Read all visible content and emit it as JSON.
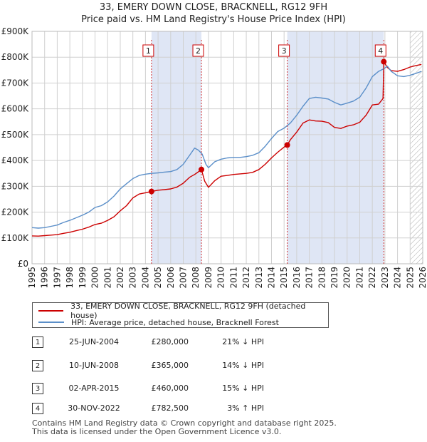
{
  "title_line1": "33, EMERY DOWN CLOSE, BRACKNELL, RG12 9FH",
  "title_line2": "Price paid vs. HM Land Registry's House Price Index (HPI)",
  "legend": {
    "property": "33, EMERY DOWN CLOSE, BRACKNELL, RG12 9FH (detached house)",
    "hpi": "HPI: Average price, detached house, Bracknell Forest"
  },
  "colors": {
    "property": "#cc0000",
    "hpi": "#5b8fc9",
    "shade": "#dfe6f5",
    "grid": "#d0d0d0",
    "hatch": "#999999"
  },
  "transactions": [
    {
      "num": "1",
      "date": "25-JUN-2004",
      "price": "£280,000",
      "hpi_rel": "21% ↓ HPI"
    },
    {
      "num": "2",
      "date": "10-JUN-2008",
      "price": "£365,000",
      "hpi_rel": "14% ↓ HPI"
    },
    {
      "num": "3",
      "date": "02-APR-2015",
      "price": "£460,000",
      "hpi_rel": "15% ↓ HPI"
    },
    {
      "num": "4",
      "date": "30-NOV-2022",
      "price": "£782,500",
      "hpi_rel": "3% ↑ HPI"
    }
  ],
  "footer_line1": "Contains HM Land Registry data © Crown copyright and database right 2025.",
  "footer_line2": "This data is licensed under the Open Government Licence v3.0.",
  "chart_data": {
    "type": "line",
    "title": "Price paid vs. HM Land Registry's House Price Index (HPI)",
    "xlim": [
      1995,
      2026
    ],
    "ylim": [
      0,
      900000
    ],
    "x_ticks": [
      1995,
      1996,
      1997,
      1998,
      1999,
      2000,
      2001,
      2002,
      2003,
      2004,
      2005,
      2006,
      2007,
      2008,
      2009,
      2010,
      2011,
      2012,
      2013,
      2014,
      2015,
      2016,
      2017,
      2018,
      2019,
      2020,
      2021,
      2022,
      2023,
      2024,
      2025,
      2026
    ],
    "y_ticks": [
      {
        "value": 0,
        "label": "£0"
      },
      {
        "value": 100000,
        "label": "£100K"
      },
      {
        "value": 200000,
        "label": "£200K"
      },
      {
        "value": 300000,
        "label": "£300K"
      },
      {
        "value": 400000,
        "label": "£400K"
      },
      {
        "value": 500000,
        "label": "£500K"
      },
      {
        "value": 600000,
        "label": "£600K"
      },
      {
        "value": 700000,
        "label": "£700K"
      },
      {
        "value": 800000,
        "label": "£800K"
      },
      {
        "value": 900000,
        "label": "£900K"
      }
    ],
    "shaded_ranges": [
      [
        2004.48,
        2008.44
      ],
      [
        2015.25,
        2022.91
      ]
    ],
    "future_hatch_from": 2025.0,
    "series": [
      {
        "name": "33, EMERY DOWN CLOSE, BRACKNELL, RG12 9FH (detached house)",
        "x": [
          1995.0,
          1995.5,
          1996.0,
          1996.5,
          1997.0,
          1997.5,
          1998.0,
          1998.5,
          1999.0,
          1999.5,
          2000.0,
          2000.5,
          2001.0,
          2001.5,
          2002.0,
          2002.5,
          2003.0,
          2003.5,
          2004.0,
          2004.48,
          2005.0,
          2005.5,
          2006.0,
          2006.5,
          2007.0,
          2007.5,
          2007.9,
          2008.2,
          2008.44,
          2008.7,
          2009.0,
          2009.5,
          2010.0,
          2010.5,
          2011.0,
          2011.5,
          2012.0,
          2012.5,
          2013.0,
          2013.5,
          2014.0,
          2014.5,
          2015.0,
          2015.25,
          2015.5,
          2016.0,
          2016.5,
          2017.0,
          2017.5,
          2018.0,
          2018.5,
          2019.0,
          2019.5,
          2020.0,
          2020.5,
          2021.0,
          2021.5,
          2022.0,
          2022.5,
          2022.85,
          2022.91,
          2023.2,
          2023.5,
          2024.0,
          2024.5,
          2025.0,
          2025.5,
          2025.9
        ],
        "values": [
          108000,
          107000,
          109000,
          111000,
          113000,
          118000,
          122000,
          128000,
          134000,
          142000,
          152000,
          157000,
          168000,
          182000,
          205000,
          225000,
          255000,
          270000,
          275000,
          280000,
          285000,
          287000,
          290000,
          297000,
          312000,
          335000,
          346000,
          356000,
          365000,
          320000,
          296000,
          322000,
          339000,
          342000,
          346000,
          348000,
          350000,
          354000,
          365000,
          385000,
          410000,
          432000,
          452000,
          460000,
          480000,
          510000,
          545000,
          557000,
          553000,
          552000,
          547000,
          528000,
          524000,
          533000,
          538000,
          548000,
          575000,
          615000,
          618000,
          640000,
          782500,
          760000,
          748000,
          745000,
          752000,
          762000,
          768000,
          772000
        ]
      },
      {
        "name": "HPI: Average price, detached house, Bracknell Forest",
        "x": [
          1995.0,
          1995.5,
          1996.0,
          1996.5,
          1997.0,
          1997.5,
          1998.0,
          1998.5,
          1999.0,
          1999.5,
          2000.0,
          2000.5,
          2001.0,
          2001.5,
          2002.0,
          2002.5,
          2003.0,
          2003.5,
          2004.0,
          2004.5,
          2005.0,
          2005.5,
          2006.0,
          2006.5,
          2007.0,
          2007.5,
          2007.9,
          2008.2,
          2008.5,
          2008.8,
          2009.0,
          2009.5,
          2010.0,
          2010.5,
          2011.0,
          2011.5,
          2012.0,
          2012.5,
          2013.0,
          2013.5,
          2014.0,
          2014.5,
          2015.0,
          2015.5,
          2016.0,
          2016.5,
          2017.0,
          2017.5,
          2018.0,
          2018.5,
          2019.0,
          2019.5,
          2020.0,
          2020.5,
          2021.0,
          2021.5,
          2022.0,
          2022.5,
          2022.9,
          2023.2,
          2023.5,
          2024.0,
          2024.5,
          2025.0,
          2025.5,
          2025.9
        ],
        "values": [
          140000,
          138000,
          140000,
          145000,
          150000,
          160000,
          168000,
          178000,
          188000,
          200000,
          218000,
          225000,
          240000,
          262000,
          290000,
          310000,
          330000,
          342000,
          347000,
          350000,
          352000,
          355000,
          357000,
          365000,
          385000,
          420000,
          448000,
          440000,
          425000,
          385000,
          372000,
          395000,
          405000,
          410000,
          412000,
          412000,
          415000,
          420000,
          430000,
          455000,
          485000,
          512000,
          525000,
          545000,
          575000,
          610000,
          640000,
          645000,
          642000,
          638000,
          625000,
          615000,
          622000,
          630000,
          645000,
          680000,
          725000,
          745000,
          755000,
          765000,
          745000,
          728000,
          725000,
          730000,
          738000,
          745000
        ]
      }
    ],
    "sales": [
      {
        "label": "1",
        "x": 2004.48,
        "price": 280000
      },
      {
        "label": "2",
        "x": 2008.44,
        "price": 365000
      },
      {
        "label": "3",
        "x": 2015.25,
        "price": 460000
      },
      {
        "label": "4",
        "x": 2022.91,
        "price": 782500
      }
    ]
  }
}
